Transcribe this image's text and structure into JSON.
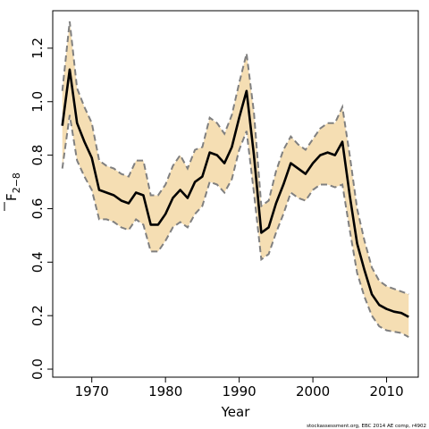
{
  "chart_data": {
    "type": "line",
    "title": "",
    "xlabel": "Year",
    "ylabel_main": "F",
    "ylabel_sub": "2−8",
    "xlim": [
      1964.7,
      2014.3
    ],
    "ylim": [
      -0.03,
      1.34
    ],
    "x_ticks": [
      1970,
      1980,
      1990,
      2000,
      2010
    ],
    "y_ticks": [
      0.0,
      0.2,
      0.4,
      0.6,
      0.8,
      1.0,
      1.2
    ],
    "y_tick_labels": [
      "0.0",
      "0.2",
      "0.4",
      "0.6",
      "0.8",
      "1.0",
      "1.2"
    ],
    "grid": false,
    "band_color": "#f5deb3",
    "line_color": "#000000",
    "bound_color": "#808080",
    "x": [
      1966,
      1967,
      1968,
      1969,
      1970,
      1971,
      1972,
      1973,
      1974,
      1975,
      1976,
      1977,
      1978,
      1979,
      1980,
      1981,
      1982,
      1983,
      1984,
      1985,
      1986,
      1987,
      1988,
      1989,
      1990,
      1991,
      1992,
      1993,
      1994,
      1995,
      1996,
      1997,
      1998,
      1999,
      2000,
      2001,
      2002,
      2003,
      2004,
      2005,
      2006,
      2007,
      2008,
      2009,
      2010,
      2011,
      2012,
      2013
    ],
    "series": [
      {
        "role": "estimate",
        "values": [
          0.91,
          1.12,
          0.92,
          0.85,
          0.79,
          0.67,
          0.66,
          0.65,
          0.63,
          0.62,
          0.66,
          0.65,
          0.54,
          0.54,
          0.58,
          0.64,
          0.67,
          0.64,
          0.7,
          0.72,
          0.81,
          0.8,
          0.77,
          0.83,
          0.94,
          1.04,
          0.8,
          0.51,
          0.53,
          0.62,
          0.69,
          0.77,
          0.75,
          0.73,
          0.77,
          0.8,
          0.81,
          0.8,
          0.85,
          0.65,
          0.47,
          0.37,
          0.28,
          0.24,
          0.225,
          0.215,
          0.21,
          0.195
        ]
      },
      {
        "role": "upper",
        "values": [
          1.04,
          1.3,
          1.05,
          0.98,
          0.92,
          0.78,
          0.76,
          0.75,
          0.73,
          0.72,
          0.78,
          0.78,
          0.65,
          0.65,
          0.69,
          0.76,
          0.8,
          0.75,
          0.82,
          0.83,
          0.94,
          0.92,
          0.88,
          0.95,
          1.07,
          1.18,
          0.96,
          0.61,
          0.63,
          0.74,
          0.82,
          0.87,
          0.84,
          0.82,
          0.86,
          0.9,
          0.92,
          0.92,
          0.98,
          0.8,
          0.6,
          0.48,
          0.38,
          0.33,
          0.31,
          0.3,
          0.29,
          0.28
        ]
      },
      {
        "role": "lower",
        "values": [
          0.75,
          0.95,
          0.78,
          0.72,
          0.67,
          0.56,
          0.56,
          0.55,
          0.53,
          0.52,
          0.56,
          0.54,
          0.44,
          0.44,
          0.48,
          0.53,
          0.55,
          0.53,
          0.58,
          0.61,
          0.7,
          0.69,
          0.66,
          0.71,
          0.82,
          0.89,
          0.66,
          0.41,
          0.43,
          0.51,
          0.58,
          0.66,
          0.64,
          0.63,
          0.67,
          0.69,
          0.69,
          0.68,
          0.69,
          0.52,
          0.36,
          0.27,
          0.2,
          0.16,
          0.145,
          0.14,
          0.135,
          0.12
        ]
      }
    ]
  },
  "footer_text": "stockassessment.org, EBC 2014 AE comp, r4902"
}
